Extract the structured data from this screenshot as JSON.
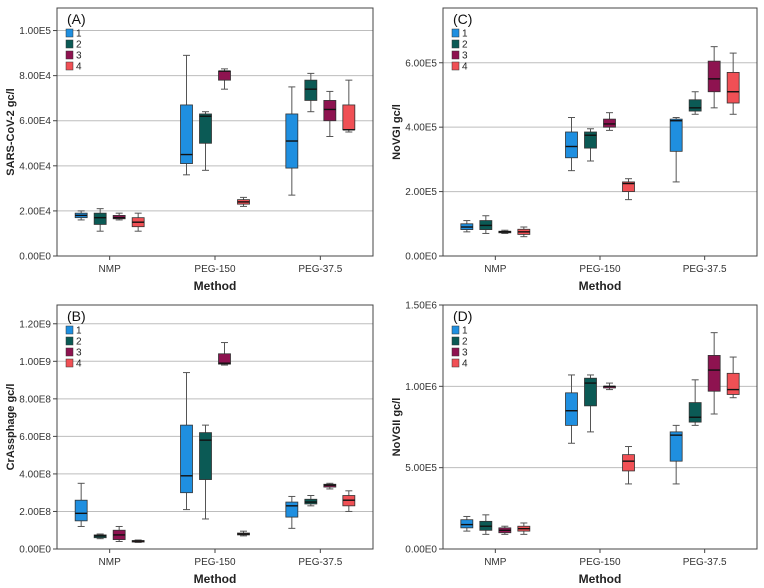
{
  "chart_data": [
    {
      "type": "boxplot",
      "panel_label": "(A)",
      "xlabel": "Method",
      "ylabel": "SARS-CoV-2 gc/l",
      "categories": [
        "NMP",
        "PEG-150",
        "PEG-37.5"
      ],
      "ylim": [
        0,
        110000
      ],
      "yticks": [
        0,
        20000,
        40000,
        60000,
        80000,
        100000
      ],
      "ytick_labels": [
        "0.00E0",
        "2.00E4",
        "4.00E4",
        "6.00E4",
        "8.00E4",
        "1.00E5"
      ],
      "legend": [
        "1",
        "2",
        "3",
        "4"
      ],
      "boxes": [
        [
          {
            "series": "1",
            "min": 16000,
            "q1": 17000,
            "median": 18000,
            "q3": 19000,
            "max": 20000
          },
          {
            "series": "2",
            "min": 11000,
            "q1": 14000,
            "median": 17000,
            "q3": 19000,
            "max": 21000
          },
          {
            "series": "3",
            "min": 16000,
            "q1": 16500,
            "median": 17000,
            "q3": 18000,
            "max": 19000
          },
          {
            "series": "4",
            "min": 11000,
            "q1": 13000,
            "median": 15000,
            "q3": 17000,
            "max": 19000
          }
        ],
        [
          {
            "series": "1",
            "min": 36000,
            "q1": 41000,
            "median": 45000,
            "q3": 67000,
            "max": 89000
          },
          {
            "series": "2",
            "min": 38000,
            "q1": 50000,
            "median": 62000,
            "q3": 63000,
            "max": 64000
          },
          {
            "series": "3",
            "min": 74000,
            "q1": 78000,
            "median": 82000,
            "q3": 82000,
            "max": 83000
          },
          {
            "series": "4",
            "min": 22000,
            "q1": 23000,
            "median": 24000,
            "q3": 25000,
            "max": 26000
          }
        ],
        [
          {
            "series": "1",
            "min": 27000,
            "q1": 39000,
            "median": 51000,
            "q3": 63000,
            "max": 75000
          },
          {
            "series": "2",
            "min": 64000,
            "q1": 69000,
            "median": 74000,
            "q3": 78000,
            "max": 81000
          },
          {
            "series": "3",
            "min": 53000,
            "q1": 60000,
            "median": 65000,
            "q3": 69000,
            "max": 73000
          },
          {
            "series": "4",
            "min": 55000,
            "q1": 56000,
            "median": 56000,
            "q3": 67000,
            "max": 78000
          }
        ]
      ]
    },
    {
      "type": "boxplot",
      "panel_label": "(C)",
      "xlabel": "Method",
      "ylabel": "NoVGI gc/l",
      "categories": [
        "NMP",
        "PEG-150",
        "PEG-37.5"
      ],
      "ylim": [
        0,
        770000
      ],
      "yticks": [
        0,
        200000,
        400000,
        600000
      ],
      "ytick_labels": [
        "0.00E0",
        "2.00E5",
        "4.00E5",
        "6.00E5"
      ],
      "legend": [
        "1",
        "2",
        "3",
        "4"
      ],
      "boxes": [
        [
          {
            "series": "1",
            "min": 75000,
            "q1": 82000,
            "median": 90000,
            "q3": 100000,
            "max": 110000
          },
          {
            "series": "2",
            "min": 70000,
            "q1": 82000,
            "median": 95000,
            "q3": 110000,
            "max": 125000
          },
          {
            "series": "3",
            "min": 70000,
            "q1": 72000,
            "median": 75000,
            "q3": 77000,
            "max": 80000
          },
          {
            "series": "4",
            "min": 60000,
            "q1": 67000,
            "median": 75000,
            "q3": 83000,
            "max": 90000
          }
        ],
        [
          {
            "series": "1",
            "min": 265000,
            "q1": 305000,
            "median": 340000,
            "q3": 385000,
            "max": 430000
          },
          {
            "series": "2",
            "min": 295000,
            "q1": 335000,
            "median": 375000,
            "q3": 385000,
            "max": 395000
          },
          {
            "series": "3",
            "min": 390000,
            "q1": 400000,
            "median": 410000,
            "q3": 425000,
            "max": 445000
          },
          {
            "series": "4",
            "min": 175000,
            "q1": 200000,
            "median": 225000,
            "q3": 230000,
            "max": 240000
          }
        ],
        [
          {
            "series": "1",
            "min": 230000,
            "q1": 325000,
            "median": 420000,
            "q3": 425000,
            "max": 430000
          },
          {
            "series": "2",
            "min": 440000,
            "q1": 450000,
            "median": 460000,
            "q3": 485000,
            "max": 510000
          },
          {
            "series": "3",
            "min": 460000,
            "q1": 510000,
            "median": 550000,
            "q3": 605000,
            "max": 650000
          },
          {
            "series": "4",
            "min": 440000,
            "q1": 475000,
            "median": 510000,
            "q3": 570000,
            "max": 630000
          }
        ]
      ]
    },
    {
      "type": "boxplot",
      "panel_label": "(B)",
      "xlabel": "Method",
      "ylabel": "CrAssphage gc/l",
      "categories": [
        "NMP",
        "PEG-150",
        "PEG-37.5"
      ],
      "ylim": [
        0,
        1300000000
      ],
      "yticks": [
        0,
        200000000,
        400000000,
        600000000,
        800000000,
        1000000000,
        1200000000
      ],
      "ytick_labels": [
        "0.00E0",
        "2.00E8",
        "4.00E8",
        "6.00E8",
        "8.00E8",
        "1.00E9",
        "1.20E9"
      ],
      "legend": [
        "1",
        "2",
        "3",
        "4"
      ],
      "boxes": [
        [
          {
            "series": "1",
            "min": 120000000,
            "q1": 150000000,
            "median": 190000000,
            "q3": 260000000,
            "max": 350000000
          },
          {
            "series": "2",
            "min": 55000000,
            "q1": 60000000,
            "median": 70000000,
            "q3": 75000000,
            "max": 80000000
          },
          {
            "series": "3",
            "min": 40000000,
            "q1": 50000000,
            "median": 75000000,
            "q3": 100000000,
            "max": 120000000
          },
          {
            "series": "4",
            "min": 35000000,
            "q1": 38000000,
            "median": 42000000,
            "q3": 45000000,
            "max": 48000000
          }
        ],
        [
          {
            "series": "1",
            "min": 210000000,
            "q1": 300000000,
            "median": 390000000,
            "q3": 660000000,
            "max": 940000000
          },
          {
            "series": "2",
            "min": 160000000,
            "q1": 370000000,
            "median": 580000000,
            "q3": 620000000,
            "max": 660000000
          },
          {
            "series": "3",
            "min": 980000000,
            "q1": 985000000,
            "median": 990000000,
            "q3": 1040000000,
            "max": 1100000000
          },
          {
            "series": "4",
            "min": 70000000,
            "q1": 75000000,
            "median": 80000000,
            "q3": 85000000,
            "max": 95000000
          }
        ],
        [
          {
            "series": "1",
            "min": 110000000,
            "q1": 170000000,
            "median": 230000000,
            "q3": 250000000,
            "max": 280000000
          },
          {
            "series": "2",
            "min": 230000000,
            "q1": 240000000,
            "median": 250000000,
            "q3": 265000000,
            "max": 285000000
          },
          {
            "series": "3",
            "min": 320000000,
            "q1": 330000000,
            "median": 340000000,
            "q3": 345000000,
            "max": 350000000
          },
          {
            "series": "4",
            "min": 200000000,
            "q1": 230000000,
            "median": 260000000,
            "q3": 285000000,
            "max": 310000000
          }
        ]
      ]
    },
    {
      "type": "boxplot",
      "panel_label": "(D)",
      "xlabel": "Method",
      "ylabel": "NoVGII gc/l",
      "categories": [
        "NMP",
        "PEG-150",
        "PEG-37.5"
      ],
      "ylim": [
        0,
        1500000
      ],
      "yticks": [
        0,
        500000,
        1000000,
        1500000
      ],
      "ytick_labels": [
        "0.00E0",
        "5.00E5",
        "1.00E6",
        "1.50E6"
      ],
      "legend": [
        "1",
        "2",
        "3",
        "4"
      ],
      "boxes": [
        [
          {
            "series": "1",
            "min": 110000,
            "q1": 130000,
            "median": 150000,
            "q3": 180000,
            "max": 200000
          },
          {
            "series": "2",
            "min": 90000,
            "q1": 115000,
            "median": 140000,
            "q3": 170000,
            "max": 210000
          },
          {
            "series": "3",
            "min": 90000,
            "q1": 100000,
            "median": 115000,
            "q3": 130000,
            "max": 140000
          },
          {
            "series": "4",
            "min": 90000,
            "q1": 110000,
            "median": 125000,
            "q3": 140000,
            "max": 160000
          }
        ],
        [
          {
            "series": "1",
            "min": 650000,
            "q1": 760000,
            "median": 850000,
            "q3": 960000,
            "max": 1070000
          },
          {
            "series": "2",
            "min": 720000,
            "q1": 880000,
            "median": 1020000,
            "q3": 1050000,
            "max": 1070000
          },
          {
            "series": "3",
            "min": 980000,
            "q1": 990000,
            "median": 1000000,
            "q3": 1000000,
            "max": 1020000
          },
          {
            "series": "4",
            "min": 400000,
            "q1": 480000,
            "median": 540000,
            "q3": 580000,
            "max": 630000
          }
        ],
        [
          {
            "series": "1",
            "min": 400000,
            "q1": 540000,
            "median": 700000,
            "q3": 720000,
            "max": 760000
          },
          {
            "series": "2",
            "min": 760000,
            "q1": 780000,
            "median": 810000,
            "q3": 900000,
            "max": 1040000
          },
          {
            "series": "3",
            "min": 830000,
            "q1": 970000,
            "median": 1100000,
            "q3": 1190000,
            "max": 1330000
          },
          {
            "series": "4",
            "min": 930000,
            "q1": 950000,
            "median": 980000,
            "q3": 1080000,
            "max": 1180000
          }
        ]
      ]
    }
  ],
  "series_colors": [
    "#1f8fe0",
    "#0b5a55",
    "#8e1350",
    "#f05055"
  ],
  "grid_color": "#bdbdbd",
  "frame_color": "#444444"
}
